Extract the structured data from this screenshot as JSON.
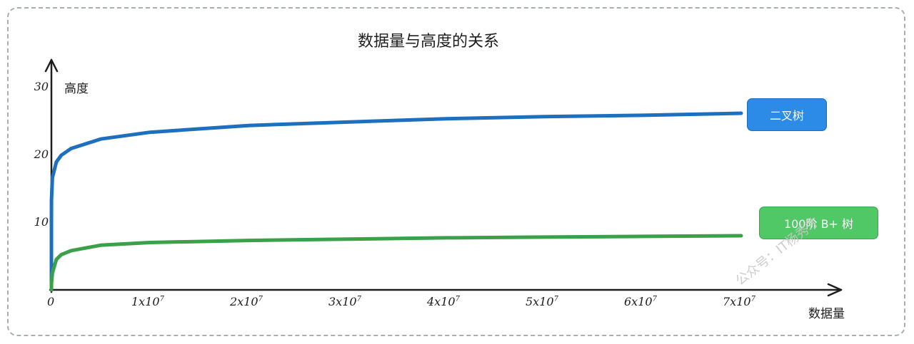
{
  "chart_data": {
    "type": "line",
    "title": "数据量与高度的关系",
    "xlabel": "数据量",
    "ylabel": "高度",
    "yticks": [
      "10",
      "20",
      "30"
    ],
    "xtick_labels": [
      {
        "value": 0,
        "label": "0"
      },
      {
        "value": 10000000,
        "mantissa": "1x10",
        "exp": "7"
      },
      {
        "value": 20000000,
        "mantissa": "2x10",
        "exp": "7"
      },
      {
        "value": 30000000,
        "mantissa": "3x10",
        "exp": "7"
      },
      {
        "value": 40000000,
        "mantissa": "4x10",
        "exp": "7"
      },
      {
        "value": 50000000,
        "mantissa": "5x10",
        "exp": "7"
      },
      {
        "value": 60000000,
        "mantissa": "6x10",
        "exp": "7"
      },
      {
        "value": 70000000,
        "mantissa": "7x10",
        "exp": "7"
      }
    ],
    "xlim": [
      0,
      80000000
    ],
    "ylim": [
      0,
      33
    ],
    "grid": false,
    "legend": "right",
    "series": [
      {
        "name": "二叉树",
        "color": "#1f6fbf",
        "legend_color": "#2b8be6",
        "x": [
          0,
          1000,
          10000,
          100000,
          500000,
          1000000,
          2000000,
          5000000,
          10000000,
          20000000,
          30000000,
          40000000,
          50000000,
          60000000,
          70000000
        ],
        "y": [
          0,
          10.0,
          13.3,
          16.6,
          18.9,
          19.9,
          20.9,
          22.3,
          23.3,
          24.3,
          24.8,
          25.3,
          25.6,
          25.8,
          26.1
        ]
      },
      {
        "name": "100阶 B+ 树",
        "color": "#3aa14a",
        "legend_color": "#4fc865",
        "x": [
          0,
          10000,
          100000,
          500000,
          1000000,
          2000000,
          5000000,
          10000000,
          20000000,
          30000000,
          40000000,
          50000000,
          60000000,
          70000000
        ],
        "y": [
          0,
          1.0,
          2.5,
          4.5,
          5.2,
          5.8,
          6.6,
          7.0,
          7.3,
          7.5,
          7.7,
          7.8,
          7.9,
          8.0
        ]
      }
    ]
  },
  "watermark": "公众号：IT杨秀才"
}
